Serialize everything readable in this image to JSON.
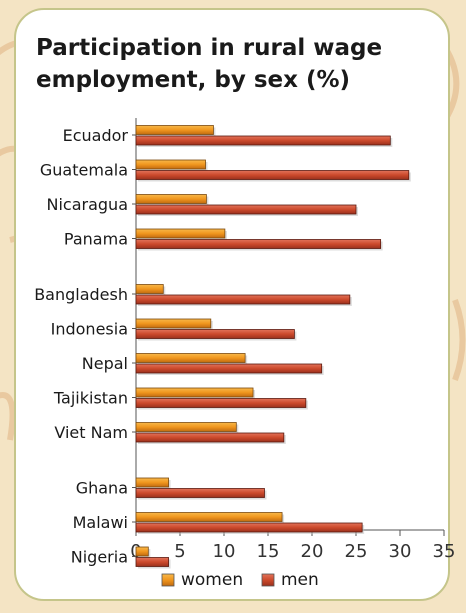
{
  "chart_data": {
    "type": "bar",
    "orientation": "horizontal",
    "title": "Participation in rural wage employment, by sex (%)",
    "categories": [
      "Ecuador",
      "Guatemala",
      "Nicaragua",
      "Panama",
      "Bangladesh",
      "Indonesia",
      "Nepal",
      "Tajikistan",
      "Viet Nam",
      "Ghana",
      "Malawi",
      "Nigeria"
    ],
    "groups": [
      4,
      5,
      3
    ],
    "series": [
      {
        "name": "women",
        "values": [
          8.8,
          7.9,
          8.0,
          10.1,
          3.1,
          8.5,
          12.4,
          13.3,
          11.4,
          3.7,
          16.6,
          1.4
        ]
      },
      {
        "name": "men",
        "values": [
          28.9,
          31.0,
          25.0,
          27.8,
          24.3,
          18.0,
          21.1,
          19.3,
          16.8,
          14.6,
          25.7,
          3.7
        ]
      }
    ],
    "xlim": [
      0,
      35
    ],
    "xticks": [
      "0",
      "5",
      "10",
      "15",
      "20",
      "25",
      "30",
      "35"
    ],
    "legend_position": "bottom",
    "colors": {
      "women": "#f0961e",
      "men": "#cc4a2c"
    }
  }
}
